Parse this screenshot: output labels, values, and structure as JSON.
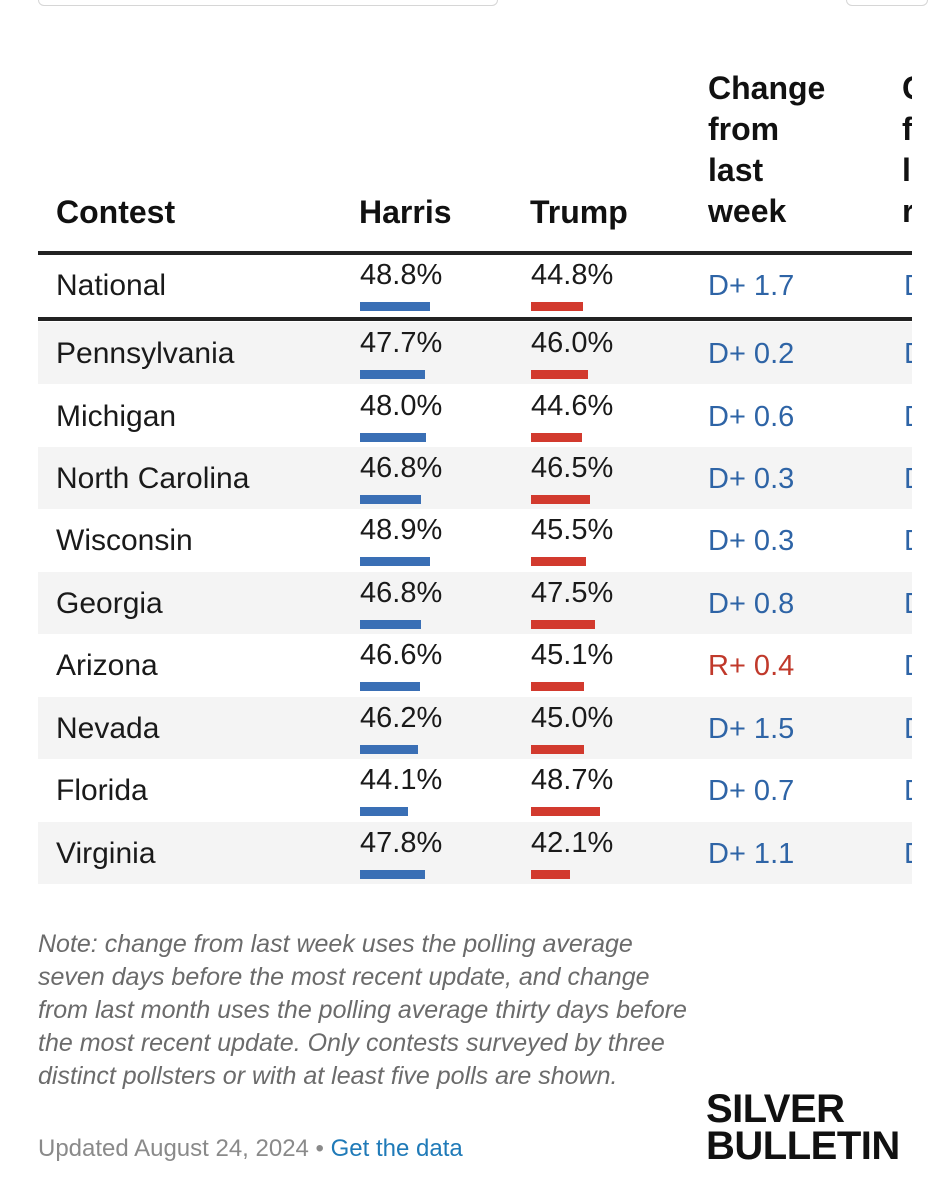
{
  "columns": {
    "contest": "Contest",
    "harris": "Harris",
    "trump": "Trump",
    "change_week": [
      "Change",
      "from",
      "last",
      "week"
    ],
    "change_month_clipped": [
      "C",
      "f",
      "l",
      "r"
    ]
  },
  "colors": {
    "harris": "#3a6fb5",
    "trump": "#d23a2e",
    "dem_change": "#2e64a6",
    "rep_change": "#c0392b"
  },
  "chart_data": {
    "type": "table",
    "title": "",
    "series": [
      {
        "name": "Harris",
        "unit": "%"
      },
      {
        "name": "Trump",
        "unit": "%"
      }
    ],
    "rows": [
      {
        "contest": "National",
        "harris": "48.8%",
        "trump": "44.8%",
        "harris_val": 48.8,
        "trump_val": 44.8,
        "change": "D+ 1.7",
        "party": "D",
        "clipped": "D"
      },
      {
        "contest": "Pennsylvania",
        "harris": "47.7%",
        "trump": "46.0%",
        "harris_val": 47.7,
        "trump_val": 46.0,
        "change": "D+ 0.2",
        "party": "D",
        "clipped": "D"
      },
      {
        "contest": "Michigan",
        "harris": "48.0%",
        "trump": "44.6%",
        "harris_val": 48.0,
        "trump_val": 44.6,
        "change": "D+ 0.6",
        "party": "D",
        "clipped": "D"
      },
      {
        "contest": "North Carolina",
        "harris": "46.8%",
        "trump": "46.5%",
        "harris_val": 46.8,
        "trump_val": 46.5,
        "change": "D+ 0.3",
        "party": "D",
        "clipped": "D"
      },
      {
        "contest": "Wisconsin",
        "harris": "48.9%",
        "trump": "45.5%",
        "harris_val": 48.9,
        "trump_val": 45.5,
        "change": "D+ 0.3",
        "party": "D",
        "clipped": "D"
      },
      {
        "contest": "Georgia",
        "harris": "46.8%",
        "trump": "47.5%",
        "harris_val": 46.8,
        "trump_val": 47.5,
        "change": "D+ 0.8",
        "party": "D",
        "clipped": "D"
      },
      {
        "contest": "Arizona",
        "harris": "46.6%",
        "trump": "45.1%",
        "harris_val": 46.6,
        "trump_val": 45.1,
        "change": "R+ 0.4",
        "party": "R",
        "clipped": "D"
      },
      {
        "contest": "Nevada",
        "harris": "46.2%",
        "trump": "45.0%",
        "harris_val": 46.2,
        "trump_val": 45.0,
        "change": "D+ 1.5",
        "party": "D",
        "clipped": "D"
      },
      {
        "contest": "Florida",
        "harris": "44.1%",
        "trump": "48.7%",
        "harris_val": 44.1,
        "trump_val": 48.7,
        "change": "D+ 0.7",
        "party": "D",
        "clipped": "D"
      },
      {
        "contest": "Virginia",
        "harris": "47.8%",
        "trump": "42.1%",
        "harris_val": 47.8,
        "trump_val": 42.1,
        "change": "D+ 1.1",
        "party": "D",
        "clipped": "D"
      }
    ]
  },
  "note": "Note: change from last week uses the polling average seven days before the most recent update, and change from last month uses the polling average thirty days before the most recent update. Only contests surveyed by three distinct pollsters or with at least five polls are shown.",
  "footer": {
    "updated": "Updated August 24, 2024",
    "separator": " • ",
    "link": "Get the data"
  },
  "logo": {
    "line1": "SILVER",
    "line2": "BULLETIN"
  }
}
